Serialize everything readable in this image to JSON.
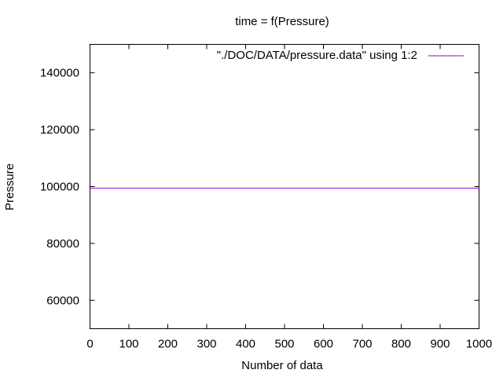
{
  "chart_data": {
    "type": "line",
    "title": "time = f(Pressure)",
    "xlabel": "Number of data",
    "ylabel": "Pressure",
    "xlim": [
      0,
      1000
    ],
    "ylim": [
      50000,
      150000
    ],
    "xticks": [
      0,
      100,
      200,
      300,
      400,
      500,
      600,
      700,
      800,
      900,
      1000
    ],
    "yticks": [
      60000,
      80000,
      100000,
      120000,
      140000
    ],
    "grid": false,
    "legend_position": "top-right",
    "series": [
      {
        "name": "\"./DOC/DATA/pressure.data\" using 1:2",
        "color": "#9400d3",
        "x": [
          0,
          1000
        ],
        "y": [
          99400,
          99400
        ]
      }
    ]
  }
}
